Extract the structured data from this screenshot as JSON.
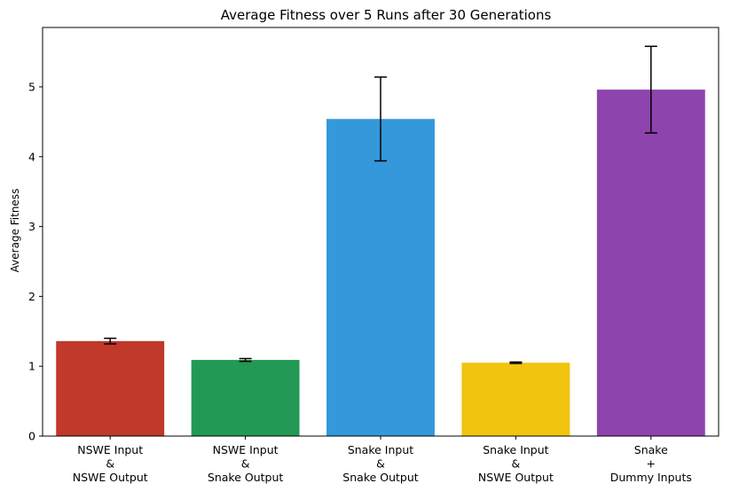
{
  "chart_data": {
    "type": "bar",
    "title": "Average Fitness over 5 Runs after 30 Generations",
    "xlabel": "",
    "ylabel": "Average Fitness",
    "ylim": [
      0,
      5.85
    ],
    "yticks": [
      0,
      1,
      2,
      3,
      4,
      5
    ],
    "grid": false,
    "legend": "none",
    "categories": [
      [
        "NSWE Input",
        "&",
        "NSWE Output"
      ],
      [
        "NSWE Input",
        "&",
        "Snake Output"
      ],
      [
        "Snake Input",
        "&",
        "Snake Output"
      ],
      [
        "Snake Input",
        "&",
        "NSWE Output"
      ],
      [
        "Snake",
        "+",
        "Dummy Inputs"
      ]
    ],
    "values": [
      1.36,
      1.09,
      4.54,
      1.05,
      4.96
    ],
    "errors": [
      0.04,
      0.02,
      0.6,
      0.01,
      0.62
    ],
    "colors": [
      "#c0392b",
      "#229954",
      "#3498db",
      "#f1c40f",
      "#8e44ad"
    ]
  }
}
